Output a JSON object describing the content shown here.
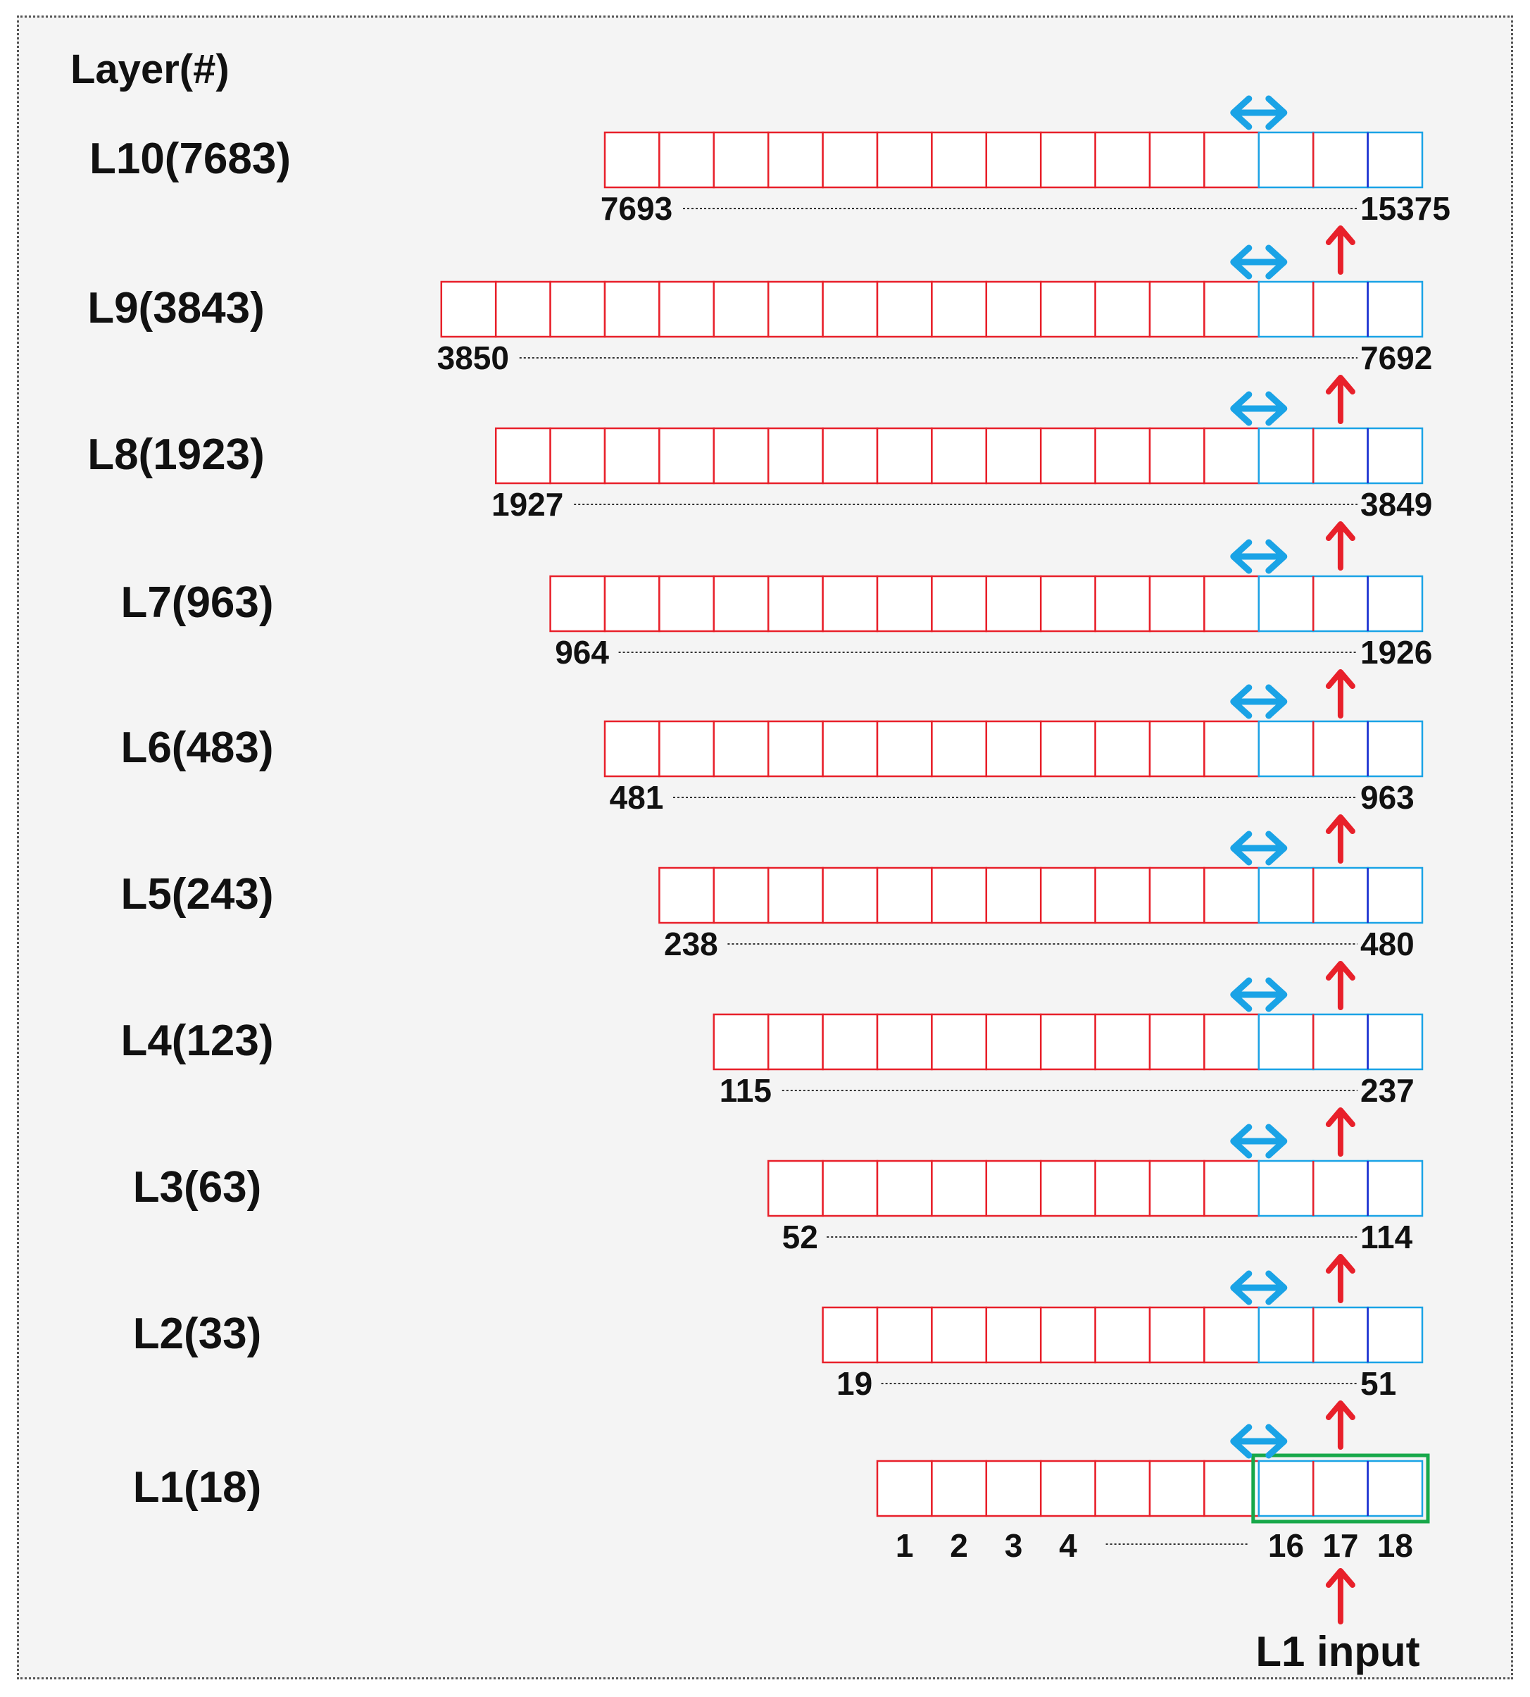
{
  "header": "Layer(#)",
  "colors": {
    "red": "#e8202a",
    "cyan": "#1aa3e6",
    "blue": "#1e2ad0",
    "green": "#17a84a",
    "text": "#111111"
  },
  "layers": [
    {
      "label": "L10(7683)",
      "start": "7693",
      "end": "15375"
    },
    {
      "label": "L9(3843)",
      "start": "3850",
      "end": "7692"
    },
    {
      "label": "L8(1923)",
      "start": "1927",
      "end": "3849"
    },
    {
      "label": "L7(963)",
      "start": "964",
      "end": "1926"
    },
    {
      "label": "L6(483)",
      "start": "481",
      "end": "963"
    },
    {
      "label": "L5(243)",
      "start": "238",
      "end": "480"
    },
    {
      "label": "L4(123)",
      "start": "115",
      "end": "237"
    },
    {
      "label": "L3(63)",
      "start": "52",
      "end": "114"
    },
    {
      "label": "L2(33)",
      "start": "19",
      "end": "51"
    },
    {
      "label": "L1(18)",
      "cell_labels": [
        "1",
        "2",
        "3",
        "4",
        "16",
        "17",
        "18"
      ]
    }
  ],
  "input_label": "L1 input",
  "icons": {
    "shift": "double-arrow-icon",
    "feed": "up-arrow-icon"
  }
}
